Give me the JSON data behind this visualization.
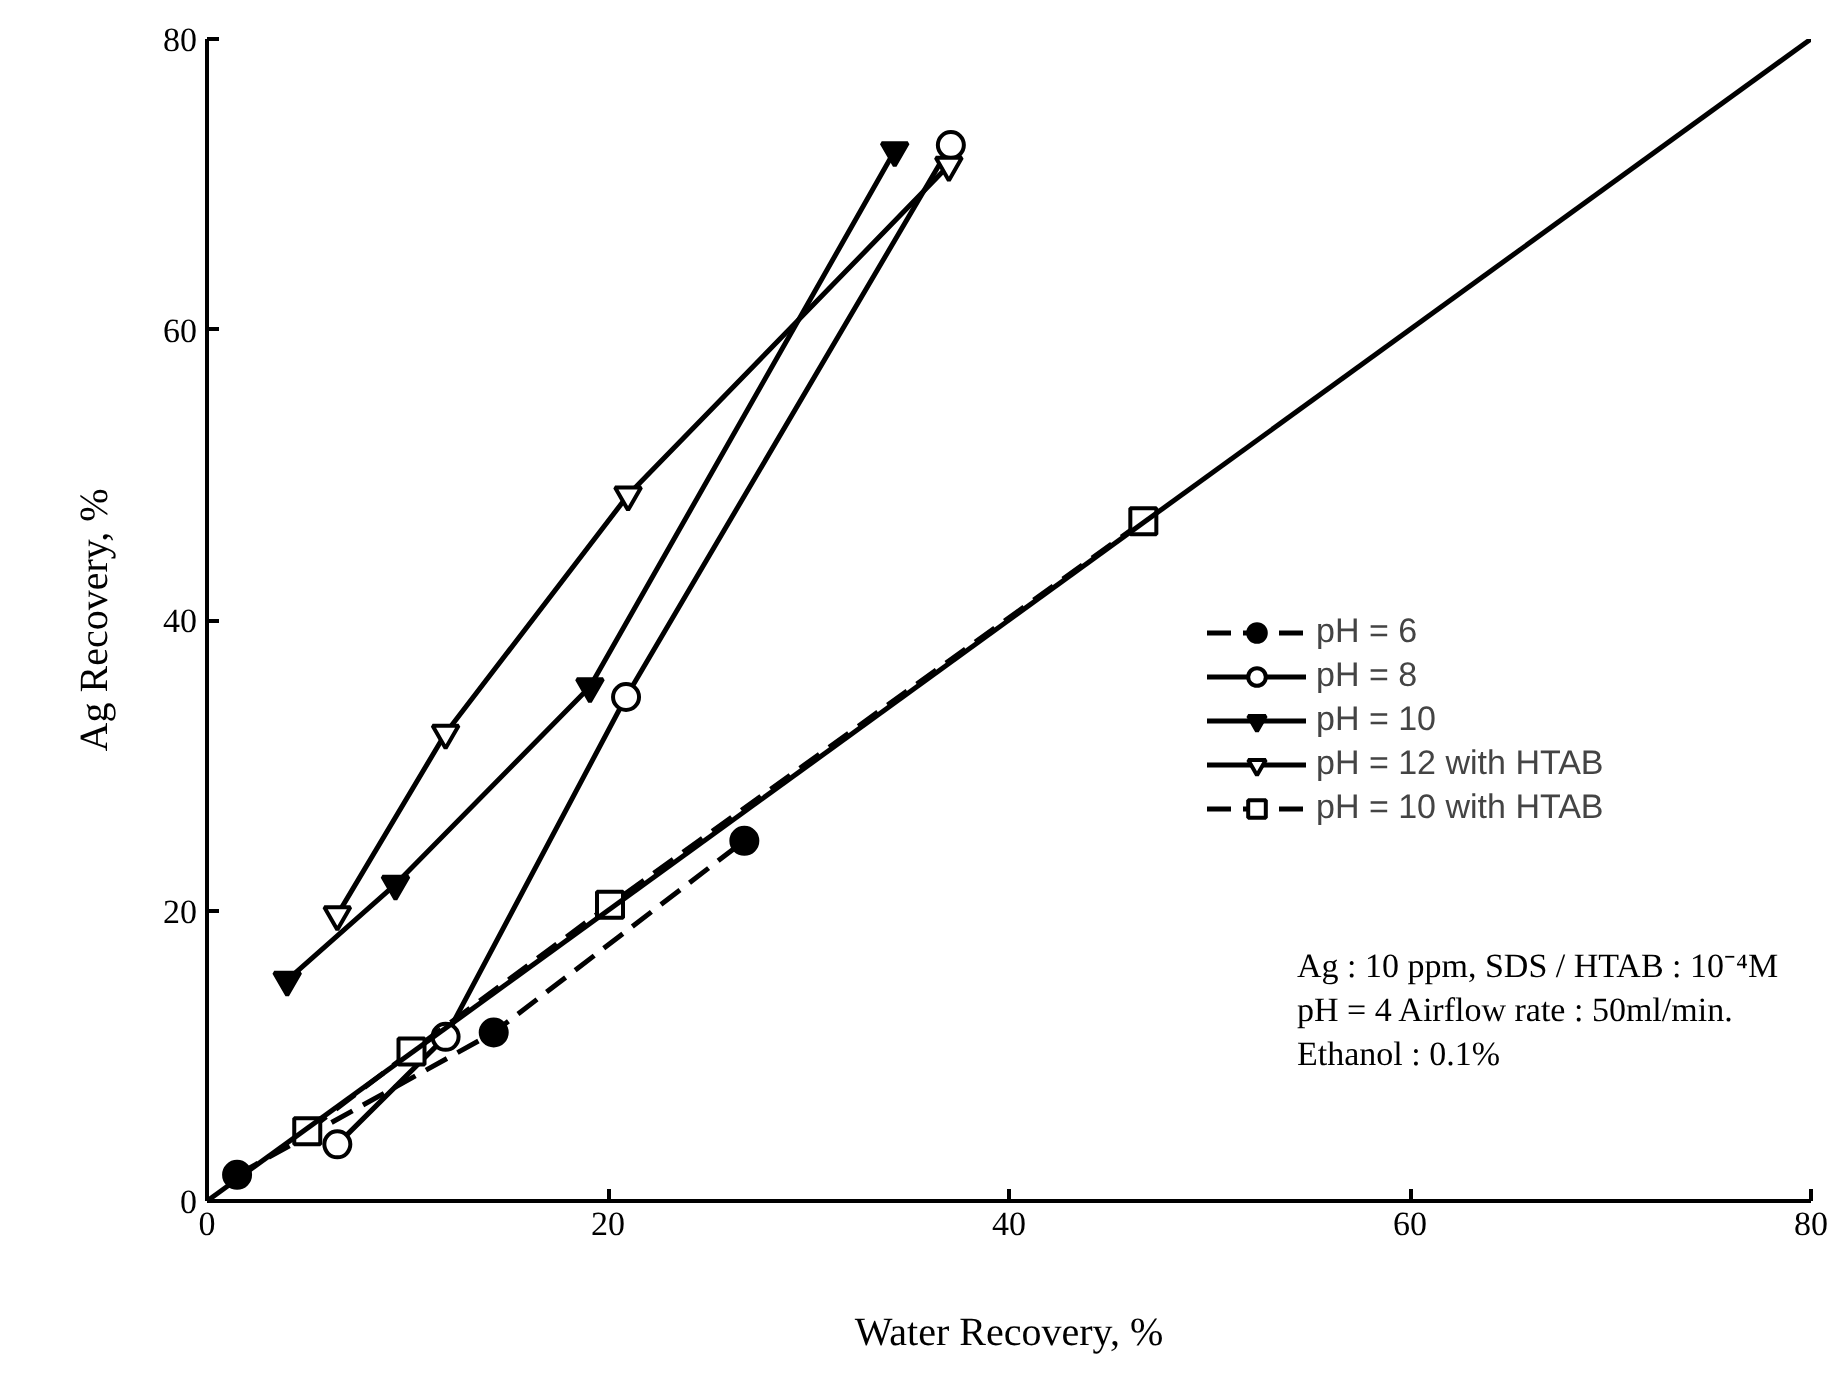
{
  "chart_data": {
    "type": "line",
    "xlabel": "Water Recovery, %",
    "ylabel": "Ag Recovery, %",
    "xlim": [
      0,
      80
    ],
    "ylim": [
      0,
      80
    ],
    "xticks": [
      0,
      20,
      40,
      60,
      80
    ],
    "yticks": [
      0,
      20,
      40,
      60,
      80
    ],
    "grid": false,
    "legend": "right",
    "series": [
      {
        "name": "pH = 6",
        "color": "#000000",
        "marker": "circle",
        "line_style": "dashed",
        "x": [
          1.5,
          14.3,
          26.8
        ],
        "values": [
          1.8,
          11.6,
          24.8
        ]
      },
      {
        "name": "pH = 8",
        "color": "#000000",
        "marker": "circle",
        "line_style": "solid",
        "x": [
          6.5,
          11.9,
          20.9,
          37.1
        ],
        "values": [
          3.9,
          11.3,
          34.7,
          72.7
        ]
      },
      {
        "name": "pH = 10",
        "color": "#000000",
        "marker": "triangle",
        "line_style": "solid",
        "x": [
          4.0,
          9.4,
          19.1,
          34.3
        ],
        "values": [
          15.2,
          21.8,
          35.4,
          72.3
        ]
      },
      {
        "name": "pH = 12 with HTAB",
        "color": "#000000",
        "marker": "triangle",
        "line_style": "solid",
        "x": [
          6.5,
          11.9,
          21.0,
          37.0
        ],
        "values": [
          19.7,
          32.2,
          48.6,
          71.3
        ]
      },
      {
        "name": "pH = 10 with HTAB",
        "color": "#000000",
        "marker": "square",
        "line_style": "dashed",
        "x": [
          5.0,
          10.2,
          20.1,
          46.7
        ],
        "values": [
          4.8,
          10.3,
          20.4,
          46.8
        ]
      },
      {
        "color": "#000000",
        "marker": "none",
        "line_style": "solid",
        "x": [
          0,
          80
        ],
        "values": [
          0,
          80
        ]
      }
    ],
    "annotations": [
      "Ag : 10 ppm, SDS / HTAB : 10⁻⁴M",
      "pH = 4 Airflow rate : 50ml/min.",
      "Ethanol : 0.1%"
    ]
  }
}
